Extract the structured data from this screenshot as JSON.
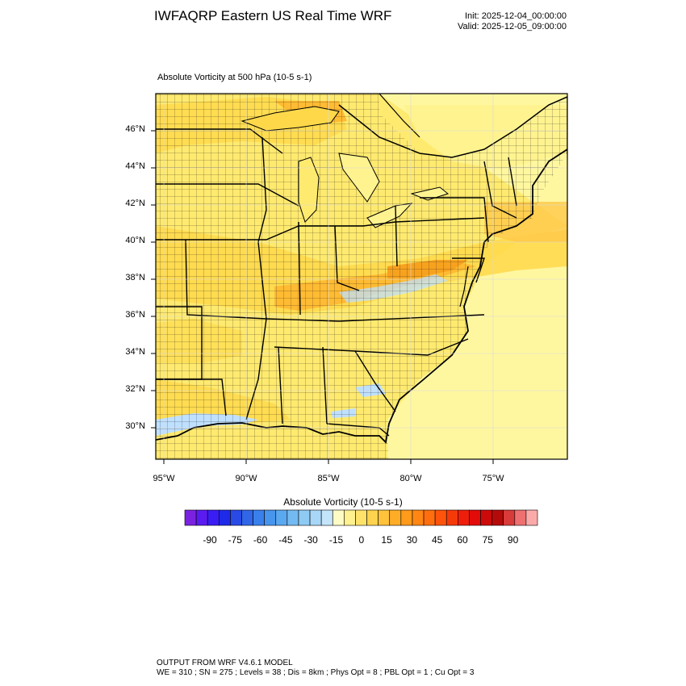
{
  "header": {
    "title": "IWFAQRP Eastern US Real Time WRF",
    "init": "Init: 2025-12-04_00:00:00",
    "valid": "Valid: 2025-12-05_09:00:00"
  },
  "map": {
    "subtitle": "Absolute Vorticity at 500 hPa   (10-5 s-1)",
    "lat_labels": [
      "46°N",
      "44°N",
      "42°N",
      "40°N",
      "38°N",
      "36°N",
      "34°N",
      "32°N",
      "30°N"
    ],
    "lon_labels": [
      "95°W",
      "90°W",
      "85°W",
      "80°W",
      "75°W"
    ],
    "colors": {
      "pale_yellow": "#fff7a0",
      "light_yellow": "#ffea70",
      "yellow": "#ffd84a",
      "orange": "#ffbb33",
      "dark_orange": "#f7a21f",
      "light_blue": "#bfe0ff",
      "border": "#000000"
    }
  },
  "colorbar": {
    "title": "Absolute Vorticity  (10-5 s-1)",
    "labels": [
      "-90",
      "-75",
      "-60",
      "-45",
      "-30",
      "-15",
      "0",
      "15",
      "30",
      "45",
      "60",
      "75",
      "90"
    ],
    "colors": [
      "#7b22e0",
      "#5a1bf0",
      "#3a1df5",
      "#1f2ae8",
      "#2a4ae6",
      "#3166e8",
      "#3a80ec",
      "#4895ee",
      "#5aa8f0",
      "#74baf2",
      "#8ecaf4",
      "#a8d6f6",
      "#c4e4fa",
      "#fffbc4",
      "#fff090",
      "#ffe26a",
      "#ffd34e",
      "#ffc23a",
      "#ffad26",
      "#ff9a1a",
      "#ff8612",
      "#ff6e0e",
      "#ff530c",
      "#f53a0a",
      "#ee1e0a",
      "#e30a0a",
      "#cc0a0a",
      "#b50a0a",
      "#d93a3a",
      "#ee7070",
      "#fbaaaa"
    ]
  },
  "footer": {
    "line1": "OUTPUT FROM WRF V4.6.1 MODEL",
    "line2": "WE = 310 ; SN = 275 ; Levels = 38 ; Dis = 8km ; Phys Opt = 8 ; PBL Opt = 1 ; Cu Opt = 3"
  }
}
